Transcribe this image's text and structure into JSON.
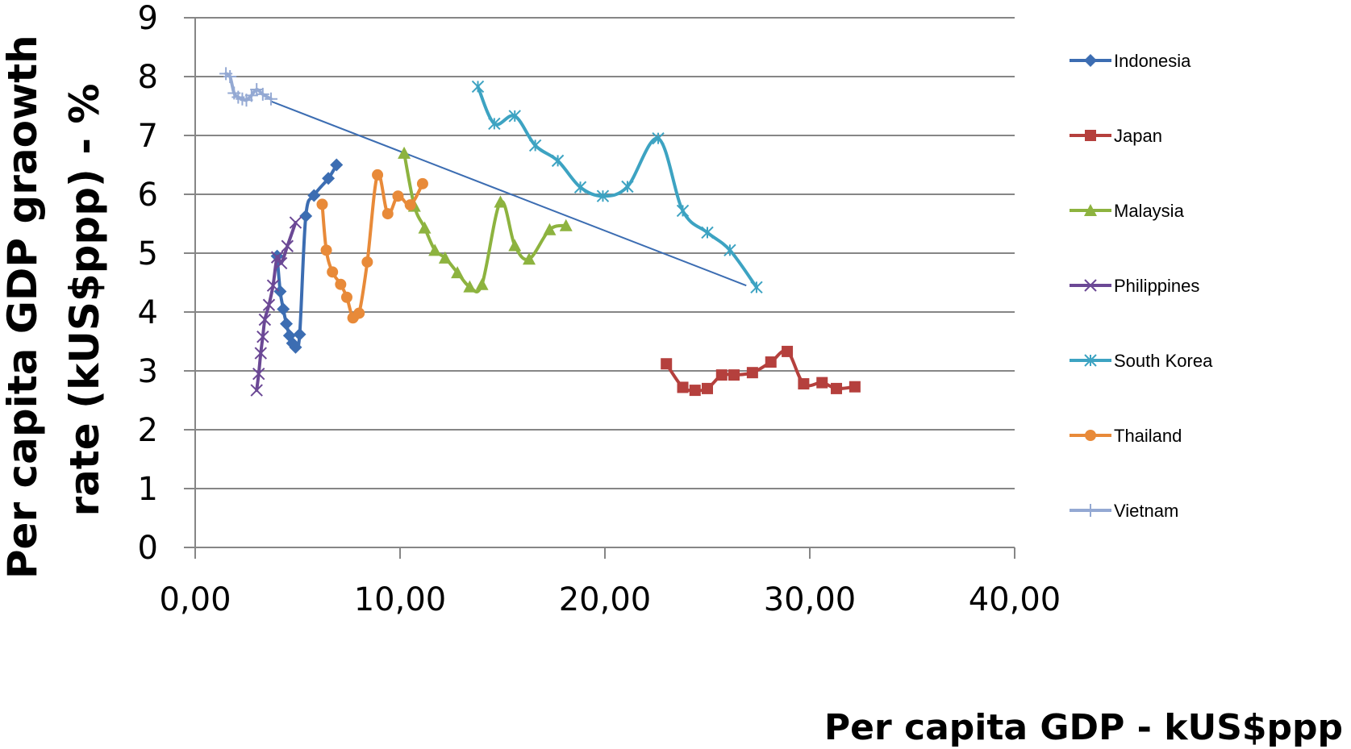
{
  "chart_data": {
    "type": "line",
    "xlabel": "Per capita GDP - kUS$ppp",
    "ylabel_lines": [
      "Per  capita GDP graowth",
      "rate (kUS$ppp)  - %"
    ],
    "xlim": [
      0,
      40
    ],
    "ylim": [
      0,
      9
    ],
    "x_ticks": [
      0,
      10,
      20,
      30,
      40
    ],
    "x_tick_labels": [
      "0,00",
      "10,00",
      "20,00",
      "30,00",
      "40,00"
    ],
    "y_ticks": [
      0,
      1,
      2,
      3,
      4,
      5,
      6,
      7,
      8,
      9
    ],
    "y_tick_labels": [
      "0",
      "1",
      "2",
      "3",
      "4",
      "5",
      "6",
      "7",
      "8",
      "9"
    ],
    "grid": "horizontal",
    "legend_position": "right",
    "series": [
      {
        "name": "Indonesia",
        "color": "#3c6db2",
        "marker": "diamond",
        "points": [
          [
            4.0,
            4.95
          ],
          [
            4.15,
            4.35
          ],
          [
            4.3,
            4.05
          ],
          [
            4.45,
            3.8
          ],
          [
            4.6,
            3.6
          ],
          [
            4.75,
            3.47
          ],
          [
            4.9,
            3.4
          ],
          [
            5.1,
            3.62
          ],
          [
            5.4,
            5.63
          ],
          [
            5.8,
            5.98
          ],
          [
            6.5,
            6.27
          ],
          [
            6.9,
            6.5
          ]
        ]
      },
      {
        "name": "Japan",
        "color": "#b5403d",
        "marker": "square",
        "points": [
          [
            23.0,
            3.12
          ],
          [
            23.8,
            2.72
          ],
          [
            24.4,
            2.67
          ],
          [
            25.0,
            2.7
          ],
          [
            25.7,
            2.93
          ],
          [
            26.3,
            2.93
          ],
          [
            27.2,
            2.97
          ],
          [
            28.1,
            3.15
          ],
          [
            28.9,
            3.33
          ],
          [
            29.7,
            2.78
          ],
          [
            30.6,
            2.8
          ],
          [
            31.3,
            2.7
          ],
          [
            32.2,
            2.73
          ]
        ]
      },
      {
        "name": "Malaysia",
        "color": "#8db33f",
        "marker": "triangle",
        "points": [
          [
            10.2,
            6.7
          ],
          [
            10.7,
            5.8
          ],
          [
            11.2,
            5.43
          ],
          [
            11.7,
            5.05
          ],
          [
            12.2,
            4.92
          ],
          [
            12.8,
            4.67
          ],
          [
            13.4,
            4.43
          ],
          [
            14.0,
            4.47
          ],
          [
            14.9,
            5.87
          ],
          [
            15.6,
            5.13
          ],
          [
            16.3,
            4.9
          ],
          [
            17.3,
            5.4
          ],
          [
            18.1,
            5.47
          ]
        ]
      },
      {
        "name": "Philippines",
        "color": "#6b4895",
        "marker": "x",
        "points": [
          [
            3.0,
            2.67
          ],
          [
            3.1,
            2.95
          ],
          [
            3.2,
            3.3
          ],
          [
            3.3,
            3.58
          ],
          [
            3.4,
            3.87
          ],
          [
            3.6,
            4.12
          ],
          [
            3.8,
            4.45
          ],
          [
            4.0,
            4.93
          ],
          [
            4.2,
            4.83
          ],
          [
            4.5,
            5.12
          ],
          [
            4.9,
            5.52
          ]
        ]
      },
      {
        "name": "South Korea",
        "color": "#3da3c2",
        "marker": "asterisk",
        "points": [
          [
            13.8,
            7.83
          ],
          [
            14.6,
            7.2
          ],
          [
            15.6,
            7.33
          ],
          [
            16.6,
            6.83
          ],
          [
            17.7,
            6.57
          ],
          [
            18.8,
            6.12
          ],
          [
            19.9,
            5.97
          ],
          [
            21.1,
            6.13
          ],
          [
            22.6,
            6.95
          ],
          [
            23.8,
            5.72
          ],
          [
            25.0,
            5.35
          ],
          [
            26.1,
            5.05
          ],
          [
            27.4,
            4.42
          ]
        ]
      },
      {
        "name": "Thailand",
        "color": "#e88a39",
        "marker": "circle",
        "points": [
          [
            6.2,
            5.83
          ],
          [
            6.4,
            5.05
          ],
          [
            6.7,
            4.68
          ],
          [
            7.1,
            4.47
          ],
          [
            7.4,
            4.25
          ],
          [
            7.7,
            3.9
          ],
          [
            8.0,
            3.98
          ],
          [
            8.4,
            4.85
          ],
          [
            8.9,
            6.33
          ],
          [
            9.4,
            5.67
          ],
          [
            9.9,
            5.97
          ],
          [
            10.5,
            5.82
          ],
          [
            11.1,
            6.18
          ]
        ]
      },
      {
        "name": "Vietnam",
        "color": "#94a9d3",
        "marker": "plus",
        "points": [
          [
            1.5,
            8.05
          ],
          [
            1.7,
            8.0
          ],
          [
            1.9,
            7.72
          ],
          [
            2.1,
            7.65
          ],
          [
            2.3,
            7.62
          ],
          [
            2.5,
            7.6
          ],
          [
            2.75,
            7.68
          ],
          [
            3.0,
            7.78
          ],
          [
            3.3,
            7.7
          ],
          [
            3.7,
            7.62
          ]
        ]
      }
    ],
    "trendline": {
      "color": "#3c6db2",
      "points": [
        [
          3.7,
          7.58
        ],
        [
          26.9,
          4.45
        ]
      ]
    }
  }
}
